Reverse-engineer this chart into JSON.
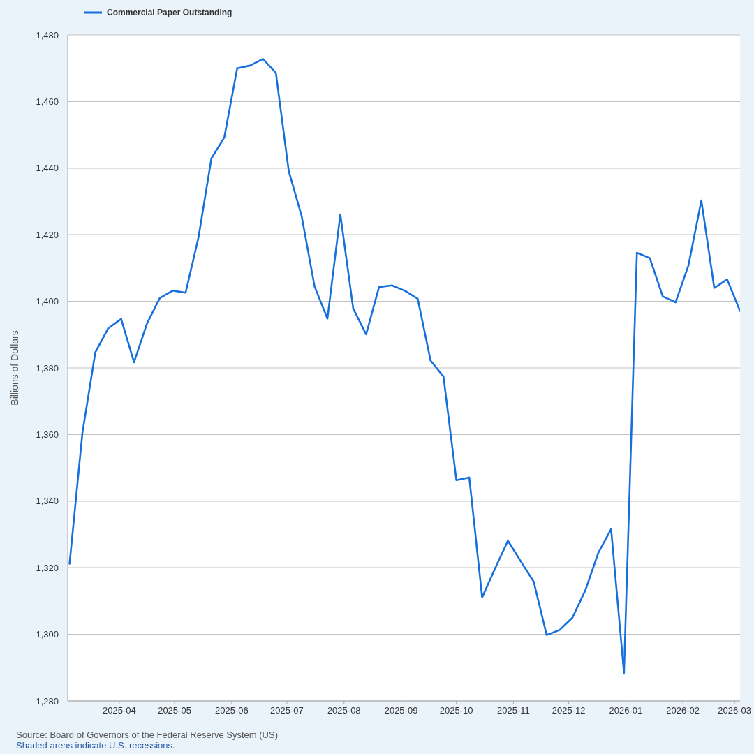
{
  "chart_data": {
    "type": "line",
    "x": [
      "2025-03-05",
      "2025-03-12",
      "2025-03-19",
      "2025-03-26",
      "2025-04-02",
      "2025-04-09",
      "2025-04-16",
      "2025-04-23",
      "2025-04-30",
      "2025-05-07",
      "2025-05-14",
      "2025-05-21",
      "2025-05-28",
      "2025-06-04",
      "2025-06-11",
      "2025-06-18",
      "2025-06-25",
      "2025-07-02",
      "2025-07-09",
      "2025-07-16",
      "2025-07-23",
      "2025-07-30",
      "2025-08-06",
      "2025-08-13",
      "2025-08-20",
      "2025-08-27",
      "2025-09-03",
      "2025-09-10",
      "2025-09-17",
      "2025-09-24",
      "2025-10-01",
      "2025-10-08",
      "2025-10-15",
      "2025-10-22",
      "2025-10-29",
      "2025-11-05",
      "2025-11-12",
      "2025-11-19",
      "2025-11-26",
      "2025-12-03",
      "2025-12-10",
      "2025-12-17",
      "2025-12-24",
      "2025-12-31",
      "2026-01-07",
      "2026-01-14",
      "2026-01-21",
      "2026-01-28",
      "2026-02-04",
      "2026-02-11",
      "2026-02-18",
      "2026-02-25",
      "2026-03-04"
    ],
    "series": [
      {
        "name": "Commercial Paper Outstanding",
        "color": "#1570dd",
        "values": [
          1321.2,
          1360.6,
          1384.7,
          1391.9,
          1394.7,
          1381.7,
          1393.3,
          1401,
          1403.2,
          1402.6,
          1419.2,
          1442.9,
          1449.2,
          1470,
          1470.8,
          1472.8,
          1468.6,
          1439.1,
          1425.6,
          1404.5,
          1394.8,
          1426.1,
          1397.8,
          1390.1,
          1404.3,
          1404.8,
          1403.2,
          1400.8,
          1382.2,
          1377.4,
          1346.3,
          1347.1,
          1311.1,
          1319.8,
          1328.1,
          1321.9,
          1315.8,
          1299.8,
          1301.3,
          1305,
          1313.2,
          1324.4,
          1331.6,
          1288.4,
          1414.6,
          1413,
          1401.5,
          1399.7,
          1410.8,
          1430.3,
          1404,
          1406.6,
          1397.1
        ]
      }
    ],
    "xlim": [
      "2025-03-04",
      "2026-03-04"
    ],
    "xticks": [
      "2025-04",
      "2025-05",
      "2025-06",
      "2025-07",
      "2025-08",
      "2025-09",
      "2025-10",
      "2025-11",
      "2025-12",
      "2026-01",
      "2026-02",
      "2026-03"
    ],
    "ylim": [
      1280,
      1480
    ],
    "yticks": [
      {
        "value": 1280,
        "label": "1,280"
      },
      {
        "value": 1300,
        "label": "1,300"
      },
      {
        "value": 1320,
        "label": "1,320"
      },
      {
        "value": 1340,
        "label": "1,340"
      },
      {
        "value": 1360,
        "label": "1,360"
      },
      {
        "value": 1380,
        "label": "1,380"
      },
      {
        "value": 1400,
        "label": "1,400"
      },
      {
        "value": 1420,
        "label": "1,420"
      },
      {
        "value": 1440,
        "label": "1,440"
      },
      {
        "value": 1460,
        "label": "1,460"
      },
      {
        "value": 1480,
        "label": "1,480"
      }
    ],
    "ylabel": "Billions of Dollars",
    "grid": "y",
    "legend": "top left",
    "marker": "none",
    "line_style": "solid",
    "annotations": [
      "Source: Board of Governors of the Federal Reserve System (US)",
      "Shaded areas indicate U.S. recessions."
    ]
  }
}
